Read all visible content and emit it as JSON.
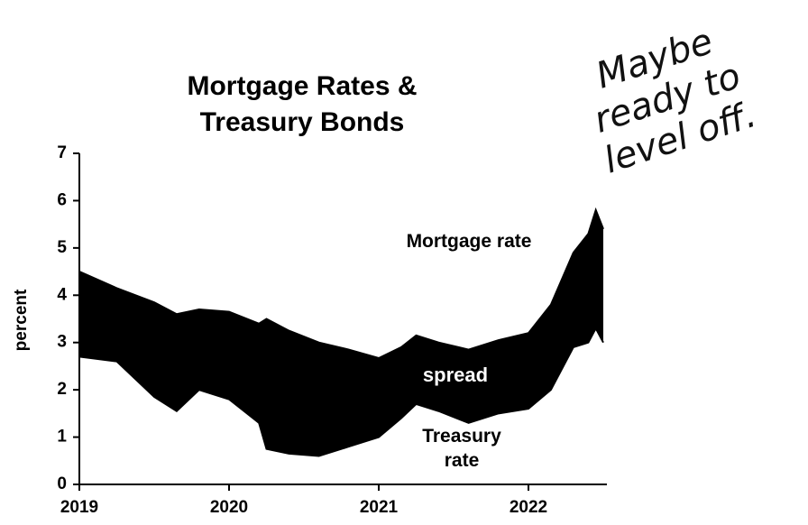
{
  "chart_data": {
    "type": "area",
    "title": "Mortgage Rates & Treasury Bonds",
    "ylabel": "percent",
    "x": [
      2019.0,
      2019.25,
      2019.5,
      2019.65,
      2019.8,
      2020.0,
      2020.2,
      2020.25,
      2020.4,
      2020.6,
      2020.8,
      2021.0,
      2021.15,
      2021.25,
      2021.4,
      2021.6,
      2021.8,
      2022.0,
      2022.15,
      2022.3,
      2022.4,
      2022.45,
      2022.5
    ],
    "series": [
      {
        "name": "Mortgage rate",
        "color": "#000000",
        "values": [
          4.5,
          4.15,
          3.85,
          3.6,
          3.7,
          3.65,
          3.4,
          3.5,
          3.25,
          3.0,
          2.85,
          2.67,
          2.9,
          3.15,
          3.0,
          2.85,
          3.05,
          3.2,
          3.8,
          4.9,
          5.3,
          5.8,
          5.4
        ]
      },
      {
        "name": "Treasury rate",
        "color": "#000000",
        "values": [
          2.7,
          2.6,
          1.85,
          1.55,
          2.0,
          1.8,
          1.3,
          0.75,
          0.65,
          0.6,
          0.8,
          1.0,
          1.4,
          1.7,
          1.55,
          1.3,
          1.5,
          1.6,
          2.0,
          2.9,
          3.0,
          3.3,
          3.0
        ]
      }
    ],
    "band_label": "spread",
    "handwritten_note": "Maybe ready to level off.",
    "xlim": [
      2019,
      2022.5
    ],
    "xticks": [
      2019,
      2020,
      2021,
      2022
    ],
    "ylim": [
      0,
      7
    ],
    "yticks": [
      0,
      1,
      2,
      3,
      4,
      5,
      6,
      7
    ],
    "grid": false
  }
}
